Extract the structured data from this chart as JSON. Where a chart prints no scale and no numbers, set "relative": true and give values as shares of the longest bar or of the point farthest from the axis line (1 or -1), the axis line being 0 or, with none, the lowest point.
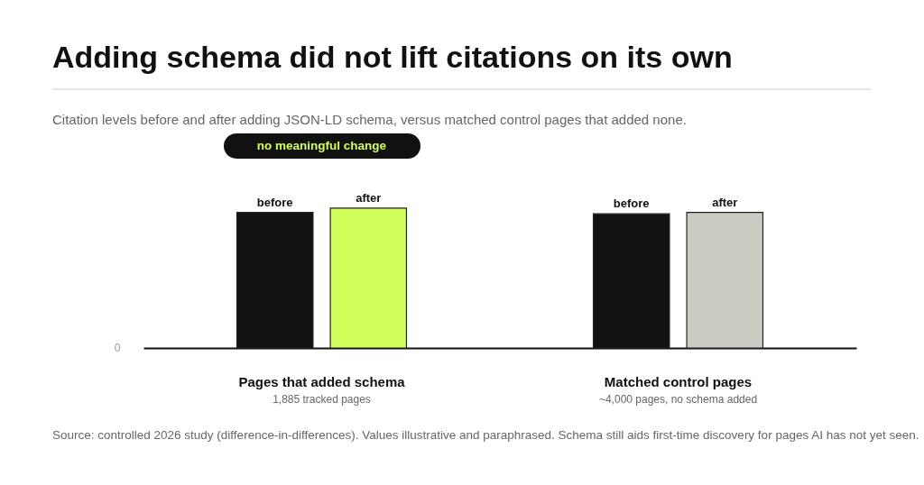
{
  "chart_data": {
    "type": "bar",
    "title": "Adding schema did not lift citations on its own",
    "subtitle": "Citation levels before and after adding JSON-LD schema, versus matched control pages that added none.",
    "categories": [
      "Pages that added schema",
      "Matched control pages"
    ],
    "relative": true,
    "series": [
      {
        "name": "before",
        "color": "#111111",
        "values": [
          0.97,
          0.96
        ]
      },
      {
        "name": "after",
        "colors": [
          "#d0ff5c",
          "#cbcbc3"
        ],
        "values": [
          1,
          0.97
        ]
      }
    ],
    "annotations": [
      "no meaningful change",
      "1,885 tracked pages",
      "~4,000 pages, no schema added",
      "0",
      "Source: controlled 2026 study (difference-in-differences). Values illustrative and paraphrased. Schema still aids first-time discovery for pages AI has not yet seen."
    ]
  }
}
